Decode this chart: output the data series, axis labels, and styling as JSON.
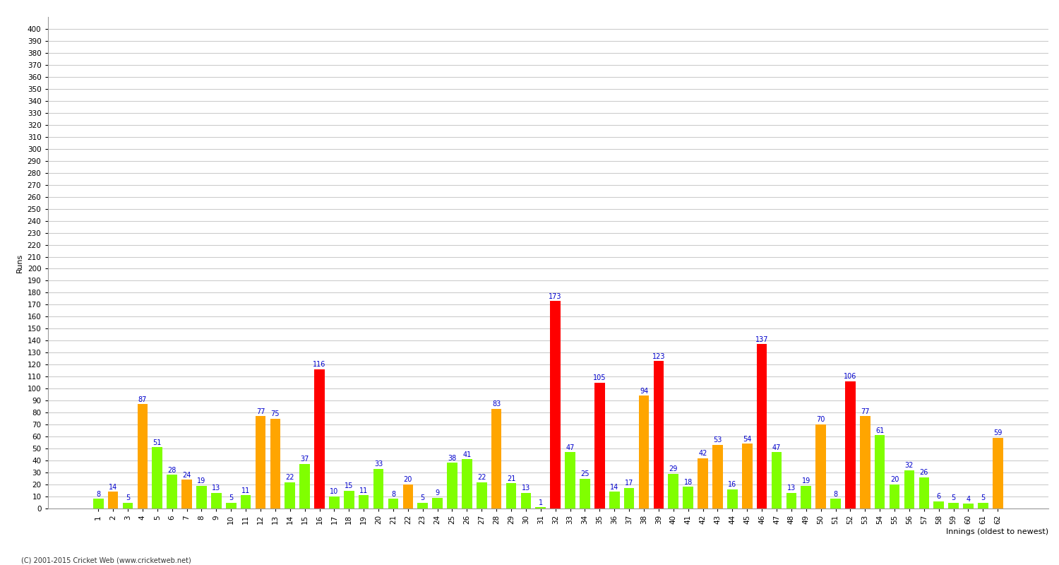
{
  "title": "",
  "xlabel": "Innings (oldest to newest)",
  "ylabel": "Runs",
  "ylim": [
    0,
    410
  ],
  "yticks": [
    0,
    10,
    20,
    30,
    40,
    50,
    60,
    70,
    80,
    90,
    100,
    110,
    120,
    130,
    140,
    150,
    160,
    170,
    180,
    190,
    200,
    210,
    220,
    230,
    240,
    250,
    260,
    270,
    280,
    290,
    300,
    310,
    320,
    330,
    340,
    350,
    360,
    370,
    380,
    390,
    400
  ],
  "innings": [
    {
      "inn": 1,
      "value": 8,
      "color": "#80ff00"
    },
    {
      "inn": 2,
      "value": 14,
      "color": "#ffa500"
    },
    {
      "inn": 3,
      "value": 5,
      "color": "#80ff00"
    },
    {
      "inn": 4,
      "value": 87,
      "color": "#ffa500"
    },
    {
      "inn": 5,
      "value": 51,
      "color": "#80ff00"
    },
    {
      "inn": 6,
      "value": 28,
      "color": "#80ff00"
    },
    {
      "inn": 7,
      "value": 24,
      "color": "#ffa500"
    },
    {
      "inn": 8,
      "value": 19,
      "color": "#80ff00"
    },
    {
      "inn": 9,
      "value": 13,
      "color": "#80ff00"
    },
    {
      "inn": 10,
      "value": 5,
      "color": "#80ff00"
    },
    {
      "inn": 11,
      "value": 11,
      "color": "#80ff00"
    },
    {
      "inn": 12,
      "value": 77,
      "color": "#ffa500"
    },
    {
      "inn": 13,
      "value": 75,
      "color": "#ffa500"
    },
    {
      "inn": 14,
      "value": 22,
      "color": "#80ff00"
    },
    {
      "inn": 15,
      "value": 37,
      "color": "#80ff00"
    },
    {
      "inn": 16,
      "value": 116,
      "color": "#ff0000"
    },
    {
      "inn": 17,
      "value": 10,
      "color": "#80ff00"
    },
    {
      "inn": 18,
      "value": 15,
      "color": "#80ff00"
    },
    {
      "inn": 19,
      "value": 11,
      "color": "#80ff00"
    },
    {
      "inn": 20,
      "value": 33,
      "color": "#80ff00"
    },
    {
      "inn": 21,
      "value": 8,
      "color": "#80ff00"
    },
    {
      "inn": 22,
      "value": 20,
      "color": "#ffa500"
    },
    {
      "inn": 23,
      "value": 5,
      "color": "#80ff00"
    },
    {
      "inn": 24,
      "value": 9,
      "color": "#80ff00"
    },
    {
      "inn": 25,
      "value": 38,
      "color": "#80ff00"
    },
    {
      "inn": 26,
      "value": 41,
      "color": "#80ff00"
    },
    {
      "inn": 27,
      "value": 22,
      "color": "#80ff00"
    },
    {
      "inn": 28,
      "value": 83,
      "color": "#ffa500"
    },
    {
      "inn": 29,
      "value": 21,
      "color": "#80ff00"
    },
    {
      "inn": 30,
      "value": 13,
      "color": "#80ff00"
    },
    {
      "inn": 31,
      "value": 1,
      "color": "#80ff00"
    },
    {
      "inn": 32,
      "value": 173,
      "color": "#ff0000"
    },
    {
      "inn": 33,
      "value": 47,
      "color": "#80ff00"
    },
    {
      "inn": 34,
      "value": 25,
      "color": "#80ff00"
    },
    {
      "inn": 35,
      "value": 105,
      "color": "#ff0000"
    },
    {
      "inn": 36,
      "value": 14,
      "color": "#80ff00"
    },
    {
      "inn": 37,
      "value": 17,
      "color": "#80ff00"
    },
    {
      "inn": 38,
      "value": 94,
      "color": "#ffa500"
    },
    {
      "inn": 39,
      "value": 123,
      "color": "#ff0000"
    },
    {
      "inn": 40,
      "value": 29,
      "color": "#80ff00"
    },
    {
      "inn": 41,
      "value": 18,
      "color": "#80ff00"
    },
    {
      "inn": 42,
      "value": 42,
      "color": "#ffa500"
    },
    {
      "inn": 43,
      "value": 53,
      "color": "#ffa500"
    },
    {
      "inn": 44,
      "value": 16,
      "color": "#80ff00"
    },
    {
      "inn": 45,
      "value": 54,
      "color": "#ffa500"
    },
    {
      "inn": 46,
      "value": 137,
      "color": "#ff0000"
    },
    {
      "inn": 47,
      "value": 47,
      "color": "#80ff00"
    },
    {
      "inn": 48,
      "value": 13,
      "color": "#80ff00"
    },
    {
      "inn": 49,
      "value": 19,
      "color": "#80ff00"
    },
    {
      "inn": 50,
      "value": 70,
      "color": "#ffa500"
    },
    {
      "inn": 51,
      "value": 8,
      "color": "#80ff00"
    },
    {
      "inn": 52,
      "value": 106,
      "color": "#ff0000"
    },
    {
      "inn": 53,
      "value": 77,
      "color": "#ffa500"
    },
    {
      "inn": 54,
      "value": 61,
      "color": "#80ff00"
    },
    {
      "inn": 55,
      "value": 20,
      "color": "#80ff00"
    },
    {
      "inn": 56,
      "value": 32,
      "color": "#80ff00"
    },
    {
      "inn": 57,
      "value": 26,
      "color": "#80ff00"
    },
    {
      "inn": 58,
      "value": 6,
      "color": "#80ff00"
    },
    {
      "inn": 59,
      "value": 5,
      "color": "#80ff00"
    },
    {
      "inn": 60,
      "value": 4,
      "color": "#80ff00"
    },
    {
      "inn": 61,
      "value": 5,
      "color": "#80ff00"
    },
    {
      "inn": 62,
      "value": 59,
      "color": "#ffa500"
    }
  ],
  "bar_width": 0.7,
  "bg_color": "#ffffff",
  "grid_color": "#cccccc",
  "label_color": "#0000cc",
  "label_fontsize": 7,
  "axis_label_fontsize": 8,
  "tick_fontsize": 7.5,
  "footer": "(C) 2001-2015 Cricket Web (www.cricketweb.net)"
}
